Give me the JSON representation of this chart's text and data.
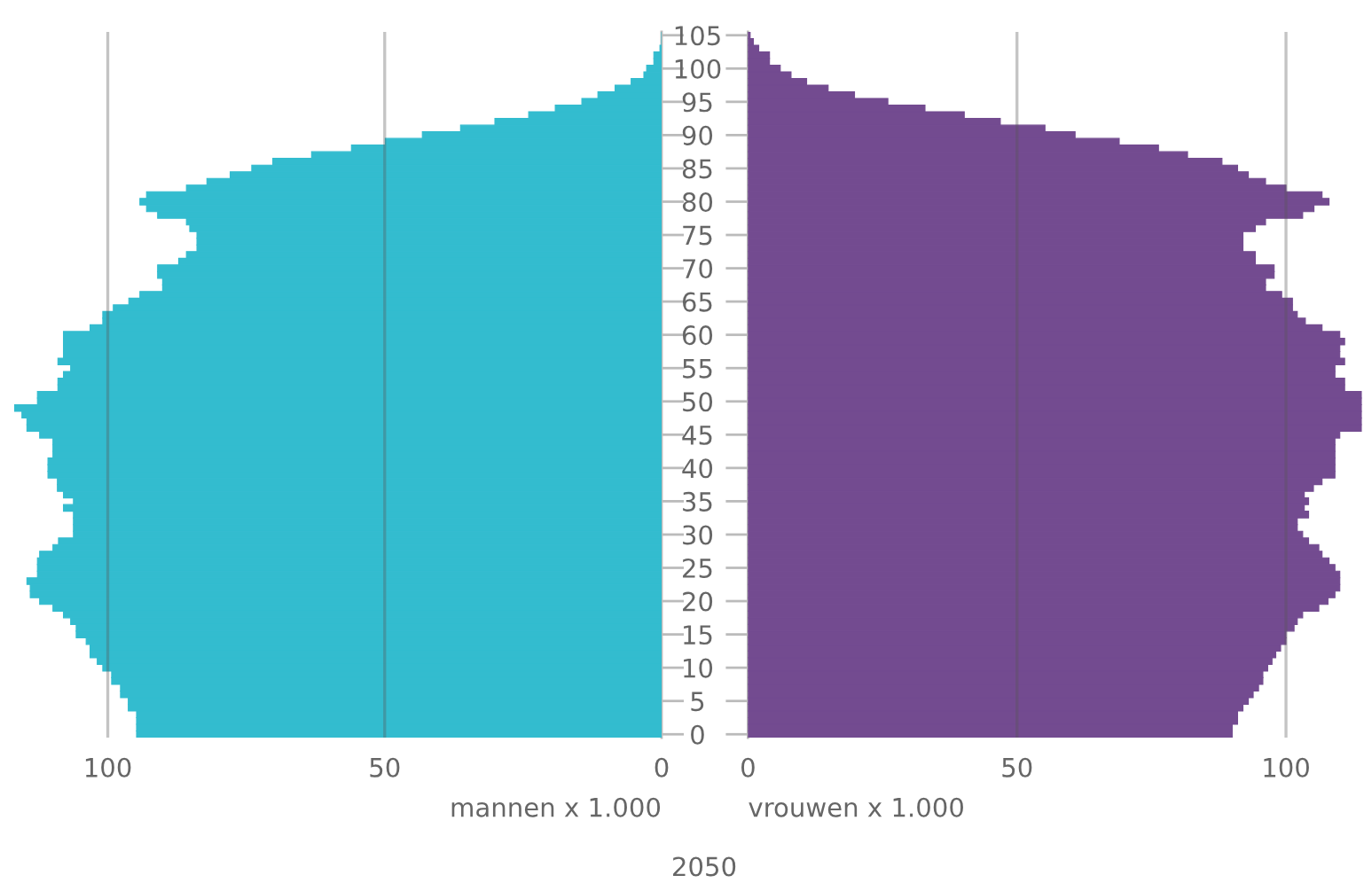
{
  "chart_data": [
    {
      "type": "bar",
      "orientation": "horizontal",
      "title": "2050",
      "xlabel": "mannen x 1.000",
      "categories": [
        "105",
        null,
        null,
        null,
        null,
        "100",
        null,
        null,
        null,
        null,
        "95",
        null,
        null,
        null,
        null,
        "90",
        null,
        null,
        null,
        null,
        "85",
        null,
        null,
        null,
        null,
        "80",
        null,
        null,
        null,
        null,
        "75",
        null,
        null,
        null,
        null,
        "70",
        null,
        null,
        null,
        null,
        "65",
        null,
        null,
        null,
        null,
        "60",
        null,
        null,
        null,
        null,
        "55",
        null,
        null,
        null,
        null,
        "50",
        null,
        null,
        null,
        null,
        "45",
        null,
        null,
        null,
        null,
        "40",
        null,
        null,
        null,
        null,
        "35",
        null,
        null,
        null,
        null,
        "30",
        null,
        null,
        null,
        null,
        "25",
        null,
        null,
        null,
        null,
        "20",
        null,
        null,
        null,
        null,
        "15",
        null,
        null,
        null,
        null,
        "10",
        null,
        null,
        null,
        null,
        "5",
        null,
        null,
        null,
        null,
        "0"
      ],
      "series": [
        {
          "color": "#33bccf",
          "values": [
            0,
            null,
            0.3,
            1.4,
            1.4,
            2.7,
            3.2,
            5.5,
            8.4,
            11.5,
            14.4,
            19.2,
            24.0,
            30.1,
            36.3,
            43.2,
            49.9,
            56.0,
            63.2,
            70.2,
            74.0,
            77.9,
            82.1,
            85.8,
            93.0,
            94.2,
            93.0,
            91.0,
            85.8,
            85.2,
            83.9,
            83.9,
            83.9,
            85.8,
            87.2,
            91.0,
            91.0,
            90.1,
            90.1,
            94.2,
            96.2,
            99.0,
            100.9,
            100.9,
            103.2,
            108.0,
            108.0,
            108.0,
            108.0,
            109.0,
            106.7,
            108.0,
            109.0,
            109.0,
            112.7,
            112.7,
            116.9,
            115.5,
            114.6,
            114.6,
            112.3,
            109.9,
            109.9,
            109.9,
            110.8,
            110.8,
            110.8,
            109.1,
            109.1,
            108.0,
            106.2,
            108.0,
            106.2,
            106.2,
            106.2,
            106.2,
            108.9,
            109.9,
            112.3,
            112.7,
            112.7,
            112.7,
            114.6,
            114.0,
            114.0,
            112.3,
            109.9,
            108.0,
            106.7,
            105.7,
            105.7,
            103.9,
            103.2,
            103.2,
            101.9,
            100.9,
            99.3,
            99.3,
            97.7,
            97.7,
            96.3,
            96.3,
            94.8,
            94.8,
            94.8,
            94.8
          ]
        }
      ],
      "xlim": [
        116.9,
        0
      ],
      "xticks": [
        0,
        50,
        100
      ],
      "grid": "x",
      "tick_labels": "x"
    },
    {
      "type": "bar",
      "orientation": "horizontal",
      "xlabel": "vrouwen x 1.000",
      "categories": [
        "105",
        null,
        null,
        null,
        null,
        "100",
        null,
        null,
        null,
        null,
        "95",
        null,
        null,
        null,
        null,
        "90",
        null,
        null,
        null,
        null,
        "85",
        null,
        null,
        null,
        null,
        "80",
        null,
        null,
        null,
        null,
        "75",
        null,
        null,
        null,
        null,
        "70",
        null,
        null,
        null,
        null,
        "65",
        null,
        null,
        null,
        null,
        "60",
        null,
        null,
        null,
        null,
        "55",
        null,
        null,
        null,
        null,
        "50",
        null,
        null,
        null,
        null,
        "45",
        null,
        null,
        null,
        null,
        "40",
        null,
        null,
        null,
        null,
        "35",
        null,
        null,
        null,
        null,
        "30",
        null,
        null,
        null,
        null,
        "25",
        null,
        null,
        null,
        null,
        "20",
        null,
        null,
        null,
        null,
        "15",
        null,
        null,
        null,
        null,
        "10",
        null,
        null,
        null,
        null,
        "5",
        null,
        null,
        null,
        null,
        "0"
      ],
      "series": [
        {
          "color": "#734b90",
          "values": [
            0.4,
            1.0,
            2.0,
            4.0,
            4.0,
            6.0,
            8.0,
            10.9,
            14.9,
            19.8,
            26.0,
            32.9,
            40.2,
            46.9,
            55.2,
            60.8,
            69.0,
            76.3,
            81.7,
            88.1,
            91.0,
            93.0,
            96.2,
            100.0,
            106.7,
            108.0,
            105.2,
            103.1,
            96.2,
            94.3,
            92.0,
            92.0,
            92.0,
            94.3,
            94.3,
            97.8,
            97.8,
            96.2,
            96.2,
            99.2,
            101.2,
            101.2,
            102.1,
            103.6,
            106.7,
            110.0,
            110.9,
            110.0,
            110.0,
            110.9,
            109.1,
            109.1,
            110.9,
            110.9,
            114.0,
            114.0,
            114.0,
            114.0,
            114.0,
            114.0,
            110.0,
            109.1,
            109.1,
            109.1,
            109.1,
            109.1,
            109.1,
            106.7,
            105.1,
            103.4,
            104.2,
            103.4,
            104.2,
            102.1,
            102.1,
            103.1,
            104.2,
            106.1,
            106.7,
            108.0,
            109.1,
            110.0,
            110.0,
            110.0,
            109.1,
            107.8,
            106.1,
            103.1,
            102.1,
            101.5,
            100.0,
            100.0,
            99.0,
            98.1,
            97.4,
            96.6,
            95.7,
            95.7,
            94.9,
            93.9,
            93.0,
            92.0,
            91.0,
            91.0,
            90.0,
            90.0
          ]
        }
      ],
      "xlim": [
        0,
        114.5
      ],
      "xticks": [
        0,
        50,
        100
      ],
      "grid": "x"
    }
  ]
}
